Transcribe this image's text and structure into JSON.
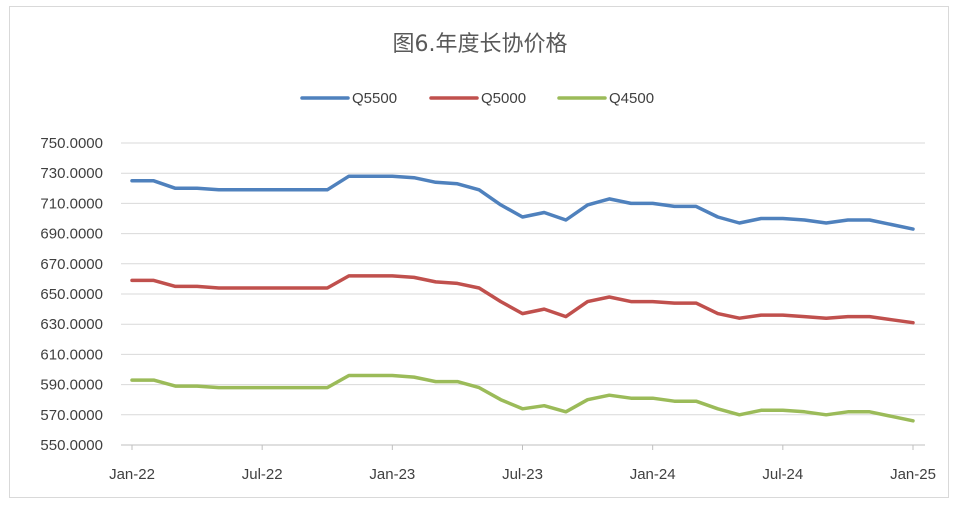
{
  "chart_data": {
    "type": "line",
    "title": "图6.年度长协价格",
    "xlabel": "",
    "ylabel": "",
    "ylim": [
      550,
      750
    ],
    "ytick_step": 20,
    "ytick_labels": [
      "550.0000",
      "570.0000",
      "590.0000",
      "610.0000",
      "630.0000",
      "650.0000",
      "670.0000",
      "690.0000",
      "710.0000",
      "730.0000",
      "750.0000"
    ],
    "xtick_labels": [
      "Jan-22",
      "Jul-22",
      "Jan-23",
      "Jul-23",
      "Jan-24",
      "Jul-24",
      "Jan-25"
    ],
    "xtick_indices": [
      0,
      6,
      12,
      18,
      24,
      30,
      36
    ],
    "x": [
      "Jan-22",
      "Feb-22",
      "Mar-22",
      "Apr-22",
      "May-22",
      "Jun-22",
      "Jul-22",
      "Aug-22",
      "Sep-22",
      "Oct-22",
      "Nov-22",
      "Dec-22",
      "Jan-23",
      "Feb-23",
      "Mar-23",
      "Apr-23",
      "May-23",
      "Jun-23",
      "Jul-23",
      "Aug-23",
      "Sep-23",
      "Oct-23",
      "Nov-23",
      "Dec-23",
      "Jan-24",
      "Feb-24",
      "Mar-24",
      "Apr-24",
      "May-24",
      "Jun-24",
      "Jul-24",
      "Aug-24",
      "Sep-24",
      "Oct-24",
      "Nov-24",
      "Dec-24",
      "Jan-25"
    ],
    "grid": true,
    "legend_position": "top-center",
    "series": [
      {
        "name": "Q5500",
        "color": "#4f81bd",
        "values": [
          725,
          725,
          720,
          720,
          719,
          719,
          719,
          719,
          719,
          719,
          728,
          728,
          728,
          727,
          724,
          723,
          719,
          709,
          701,
          704,
          699,
          709,
          713,
          710,
          710,
          708,
          708,
          701,
          697,
          700,
          700,
          699,
          697,
          699,
          699,
          696,
          693
        ]
      },
      {
        "name": "Q5000",
        "color": "#c0504d",
        "values": [
          659,
          659,
          655,
          655,
          654,
          654,
          654,
          654,
          654,
          654,
          662,
          662,
          662,
          661,
          658,
          657,
          654,
          645,
          637,
          640,
          635,
          645,
          648,
          645,
          645,
          644,
          644,
          637,
          634,
          636,
          636,
          635,
          634,
          635,
          635,
          633,
          631
        ]
      },
      {
        "name": "Q4500",
        "color": "#9bbb59",
        "values": [
          593,
          593,
          589,
          589,
          588,
          588,
          588,
          588,
          588,
          588,
          596,
          596,
          596,
          595,
          592,
          592,
          588,
          580,
          574,
          576,
          572,
          580,
          583,
          581,
          581,
          579,
          579,
          574,
          570,
          573,
          573,
          572,
          570,
          572,
          572,
          569,
          566
        ]
      }
    ]
  }
}
